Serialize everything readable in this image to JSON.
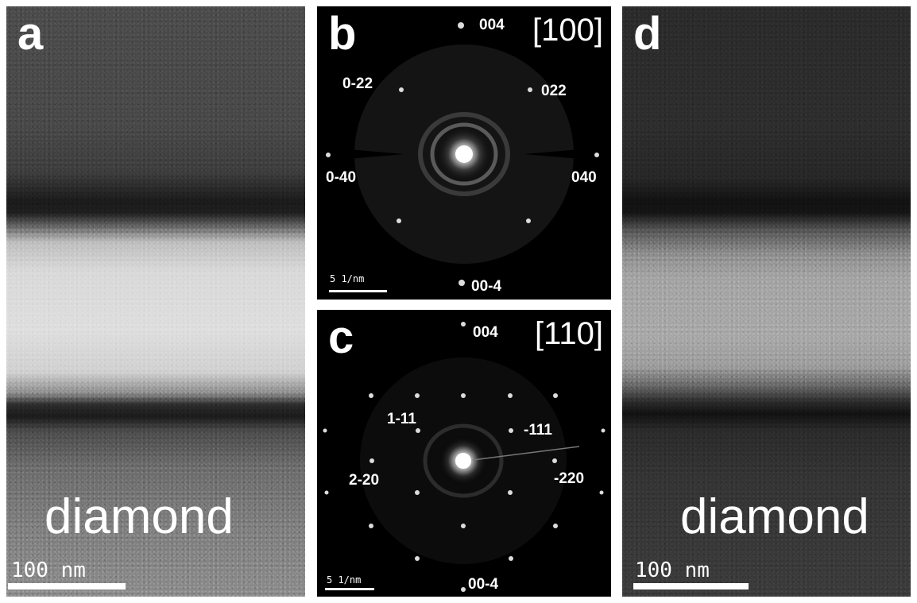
{
  "panels": {
    "a": {
      "letter": "a",
      "word": "diamond",
      "scale": "100 nm"
    },
    "b": {
      "letter": "b",
      "zone_axis": "[100]",
      "scale": "5 1/nm",
      "spots": [
        "004",
        "0-22",
        "022",
        "0-40",
        "040",
        "00-4"
      ]
    },
    "c": {
      "letter": "c",
      "zone_axis": "[110]",
      "scale": "5 1/nm",
      "spots": [
        "004",
        "1-11",
        "-111",
        "2-20",
        "-220",
        "00-4"
      ]
    },
    "d": {
      "letter": "d",
      "word": "diamond",
      "scale": "100 nm"
    }
  }
}
